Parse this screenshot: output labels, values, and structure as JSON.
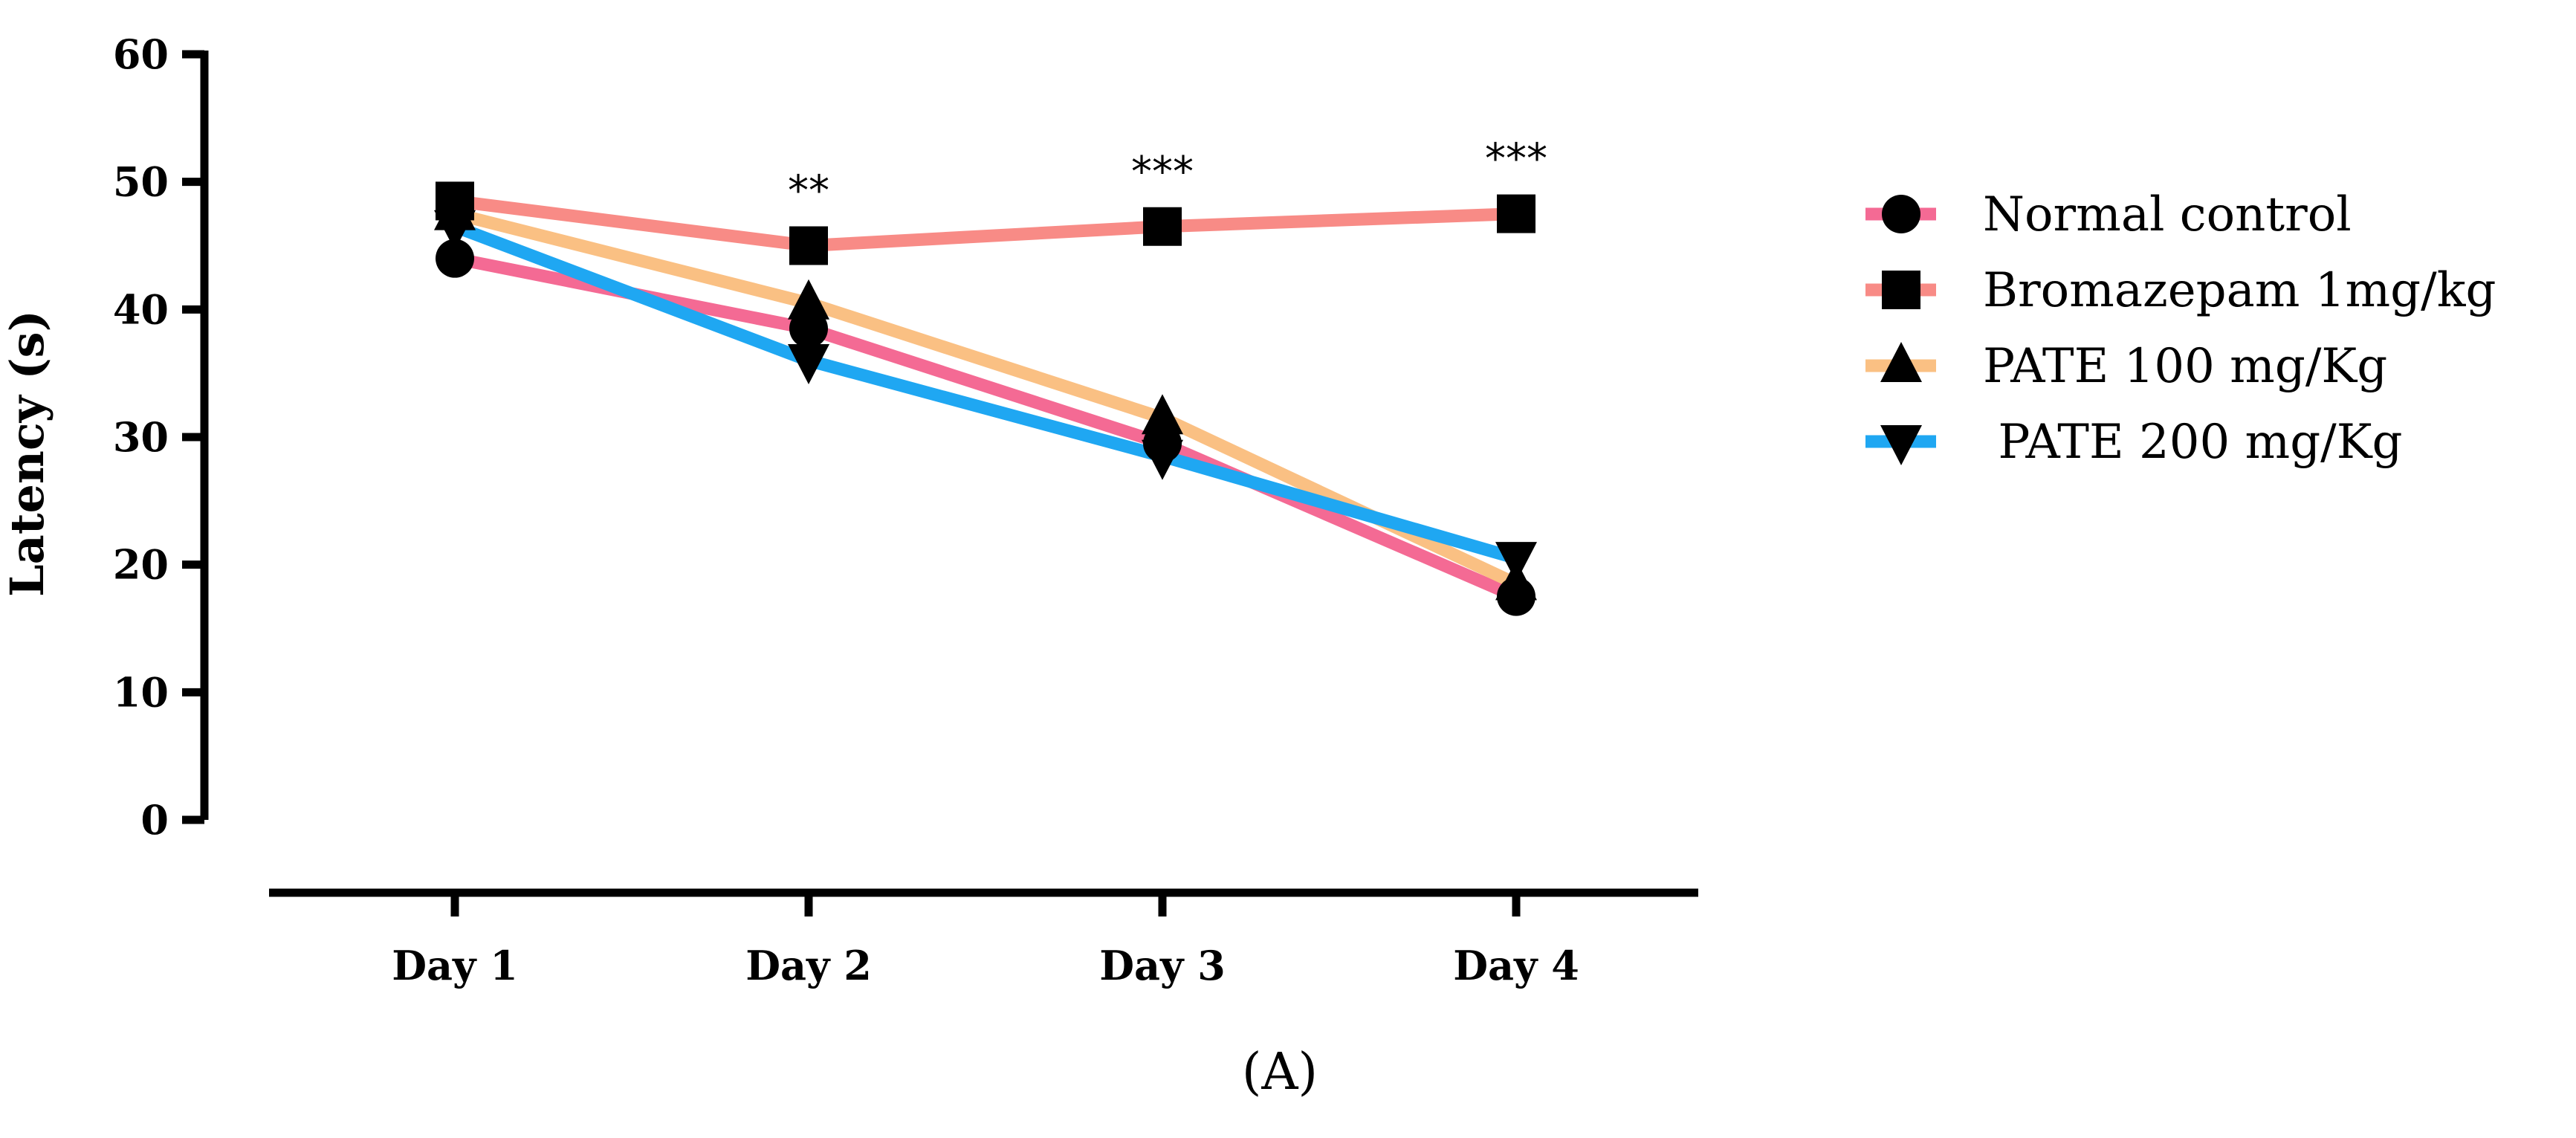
{
  "chart_data": {
    "type": "line",
    "ylabel": "Latency (s)",
    "xlabel": "",
    "ylim": [
      0,
      60
    ],
    "yticks": [
      "0",
      "10",
      "20",
      "30",
      "40",
      "50",
      "60"
    ],
    "categories": [
      "Day 1",
      "Day 2",
      "Day 3",
      "Day 4"
    ],
    "series": [
      {
        "name": "Normal control",
        "color": "#F46A94",
        "marker": "circle",
        "values": [
          44,
          38.5,
          29.5,
          17.5
        ]
      },
      {
        "name": "Bromazepam 1mg/kg",
        "color": "#F88B86",
        "marker": "square",
        "values": [
          48.5,
          45,
          46.5,
          47.5
        ]
      },
      {
        "name": "PATE 100 mg/Kg",
        "color": "#FAC083",
        "marker": "triangle-up",
        "values": [
          47.5,
          40.5,
          31.5,
          18.5
        ]
      },
      {
        "name": " PATE 200 mg/Kg",
        "color": "#1FA7F2",
        "marker": "triangle-down",
        "values": [
          46.5,
          36,
          28.5,
          20.5
        ]
      }
    ],
    "significance": [
      "",
      "**",
      "***",
      "***"
    ],
    "legend_position": "right",
    "caption": "(A)"
  }
}
